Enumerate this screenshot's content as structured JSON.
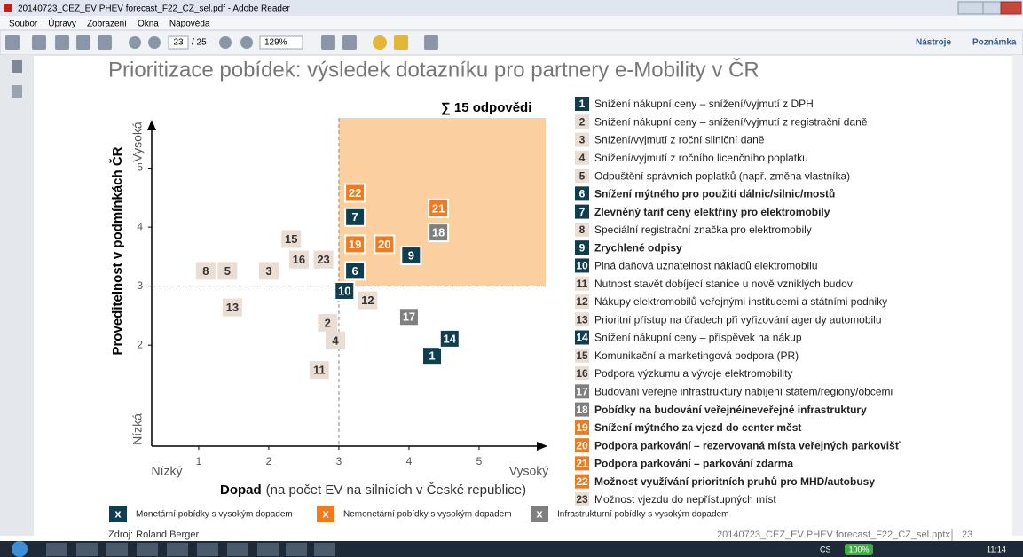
{
  "window": {
    "title": "20140723_CEZ_EV PHEV forecast_F22_CZ_sel.pdf - Adobe Reader",
    "menu": [
      "Soubor",
      "Úpravy",
      "Zobrazení",
      "Okna",
      "Nápověda"
    ],
    "page": "23",
    "pages": "/ 25",
    "zoom": "129%",
    "tools": "Nástroje",
    "comment": "Poznámka"
  },
  "slide": {
    "title": "Prioritizace pobídek: výsledek dotazníku pro partnery e-Mobility v ČR",
    "source": "Zdroj: Roland Berger",
    "file": "20140723_CEZ_EV PHEV forecast_F22_CZ_sel.pptx",
    "number": "23"
  },
  "taskbar": {
    "lang": "CS",
    "battery": "100%",
    "time": "11:14"
  },
  "chart_data": {
    "type": "scatter",
    "annotation": "∑ 15 odpovědi",
    "x_label": "Dopad",
    "x_label_note": "(na počet EV na silnicích v České republice)",
    "y_label": "Proveditelnost v podmínkách ČR",
    "x_low": "Nízký",
    "x_high": "Vysoký",
    "y_low": "Nízká",
    "y_high": "Vysoká",
    "xlim": [
      0.33,
      5.95
    ],
    "ylim": [
      0.29,
      5.85
    ],
    "xticks": [
      1,
      2,
      3,
      4,
      5
    ],
    "yticks": [
      2,
      3,
      4,
      5
    ],
    "thresholds": {
      "x": 3,
      "y": 3
    },
    "highlight_color": "#fbd09e",
    "series": [
      {
        "name": "Monetární pobídky s vysokým dopadem",
        "color": "#0f3e4e",
        "labels": [
          "1",
          "6",
          "7",
          "9",
          "10",
          "14"
        ],
        "x": [
          4.33,
          3.23,
          3.23,
          4.03,
          3.08,
          4.58
        ],
        "values": [
          1.82,
          3.26,
          4.17,
          3.52,
          2.92,
          2.11
        ]
      },
      {
        "name": "Nemonetární pobídky s vysokým dopadem",
        "color": "#f07a1e",
        "labels": [
          "19",
          "20",
          "21",
          "22"
        ],
        "x": [
          3.23,
          3.65,
          4.42,
          3.23
        ],
        "values": [
          3.71,
          3.71,
          4.32,
          4.58
        ]
      },
      {
        "name": "Infrastrukturní pobídky s vysokým dopadem",
        "color": "#7f7f7f",
        "labels": [
          "17",
          "18"
        ],
        "x": [
          4.0,
          4.42
        ],
        "values": [
          2.48,
          3.91
        ]
      },
      {
        "color": "#e9ddd4",
        "labels": [
          "2",
          "3",
          "4",
          "5",
          "8",
          "11",
          "12",
          "13",
          "15",
          "16",
          "23"
        ],
        "x": [
          2.84,
          2.0,
          2.95,
          1.41,
          1.1,
          2.72,
          3.41,
          1.48,
          2.32,
          2.43,
          2.78
        ],
        "values": [
          2.38,
          3.26,
          2.08,
          3.26,
          3.26,
          1.58,
          2.76,
          2.64,
          3.8,
          3.45,
          3.45
        ]
      }
    ],
    "items": [
      {
        "label": "1",
        "text": "Snížení nákupní ceny – snížení/vyjmutí z DPH",
        "color": "#0f3e4e",
        "bold": false
      },
      {
        "label": "2",
        "text": "Snížení nákupní ceny – snížení/vyjmutí z registrační daně",
        "color": "#e9ddd4",
        "bold": false
      },
      {
        "label": "3",
        "text": "Snížení/vyjmutí z roční silniční daně",
        "color": "#e9ddd4",
        "bold": false
      },
      {
        "label": "4",
        "text": "Snížení/vyjmutí z ročního licenčního poplatku",
        "color": "#e9ddd4",
        "bold": false
      },
      {
        "label": "5",
        "text": "Odpuštění správních poplatků (např. změna vlastníka)",
        "color": "#e9ddd4",
        "bold": false
      },
      {
        "label": "6",
        "text": "Snížení mýtného pro použití dálnic/silnic/mostů",
        "color": "#0f3e4e",
        "bold": true
      },
      {
        "label": "7",
        "text": "Zlevněný tarif ceny elektřiny pro elektromobily",
        "color": "#0f3e4e",
        "bold": true
      },
      {
        "label": "8",
        "text": "Speciální registrační značka pro elektromobily",
        "color": "#e9ddd4",
        "bold": false
      },
      {
        "label": "9",
        "text": "Zrychlené odpisy",
        "color": "#0f3e4e",
        "bold": true
      },
      {
        "label": "10",
        "text": "Plná daňová uznatelnost nákladů elektromobilu",
        "color": "#0f3e4e",
        "bold": false
      },
      {
        "label": "11",
        "text": "Nutnost stavět dobíjecí stanice u nově vzniklých budov",
        "color": "#e9ddd4",
        "bold": false
      },
      {
        "label": "12",
        "text": "Nákupy elektromobilů veřejnými institucemi a státními podniky",
        "color": "#e9ddd4",
        "bold": false
      },
      {
        "label": "13",
        "text": "Prioritní přístup na úřadech při vyřizování agendy automobilu",
        "color": "#e9ddd4",
        "bold": false
      },
      {
        "label": "14",
        "text": "Snížení nákupní ceny – příspěvek na nákup",
        "color": "#0f3e4e",
        "bold": false
      },
      {
        "label": "15",
        "text": "Komunikační a marketingová podpora (PR)",
        "color": "#e9ddd4",
        "bold": false
      },
      {
        "label": "16",
        "text": "Podpora výzkumu a vývoje elektromobility",
        "color": "#e9ddd4",
        "bold": false
      },
      {
        "label": "17",
        "text": "Budování veřejné infrastruktury nabíjení státem/regiony/obcemi",
        "color": "#7f7f7f",
        "bold": false
      },
      {
        "label": "18",
        "text": "Pobídky na budování veřejné/neveřejné infrastruktury",
        "color": "#7f7f7f",
        "bold": true
      },
      {
        "label": "19",
        "text": "Snížení mýtného za vjezd do center měst",
        "color": "#f07a1e",
        "bold": true
      },
      {
        "label": "20",
        "text": "Podpora parkování – rezervovaná místa veřejných parkovišť",
        "color": "#f07a1e",
        "bold": true
      },
      {
        "label": "21",
        "text": "Podpora parkování – parkování zdarma",
        "color": "#f07a1e",
        "bold": true
      },
      {
        "label": "22",
        "text": "Možnost využívání prioritních pruhů pro MHD/autobusy",
        "color": "#f07a1e",
        "bold": true
      },
      {
        "label": "23",
        "text": "Možnost vjezdu do nepřístupných míst",
        "color": "#e9ddd4",
        "bold": false
      }
    ],
    "legend_symbol": "x"
  }
}
